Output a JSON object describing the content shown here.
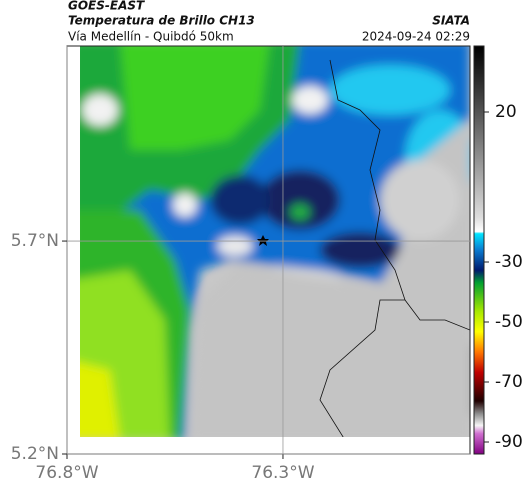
{
  "header": {
    "title": "GOES-EAST",
    "subtitle": "Temperatura de Brillo CH13",
    "region": "Vía Medellín - Quibdó 50km",
    "source": "SIATA",
    "timestamp": "2024-09-24 02:29"
  },
  "map": {
    "xlim": [
      -76.8,
      -75.867
    ],
    "ylim": [
      5.2,
      6.158
    ],
    "xticks": [
      {
        "value": -76.8,
        "label": "76.8°W"
      },
      {
        "value": -76.3,
        "label": "76.3°W"
      }
    ],
    "yticks": [
      {
        "value": 5.2,
        "label": "5.2°N"
      },
      {
        "value": 5.7,
        "label": "5.7°N"
      }
    ],
    "grid": true
  },
  "colorbar": {
    "clim": [
      -94,
      42
    ],
    "ticks": [
      20,
      -30,
      -50,
      -70,
      -90
    ]
  }
}
